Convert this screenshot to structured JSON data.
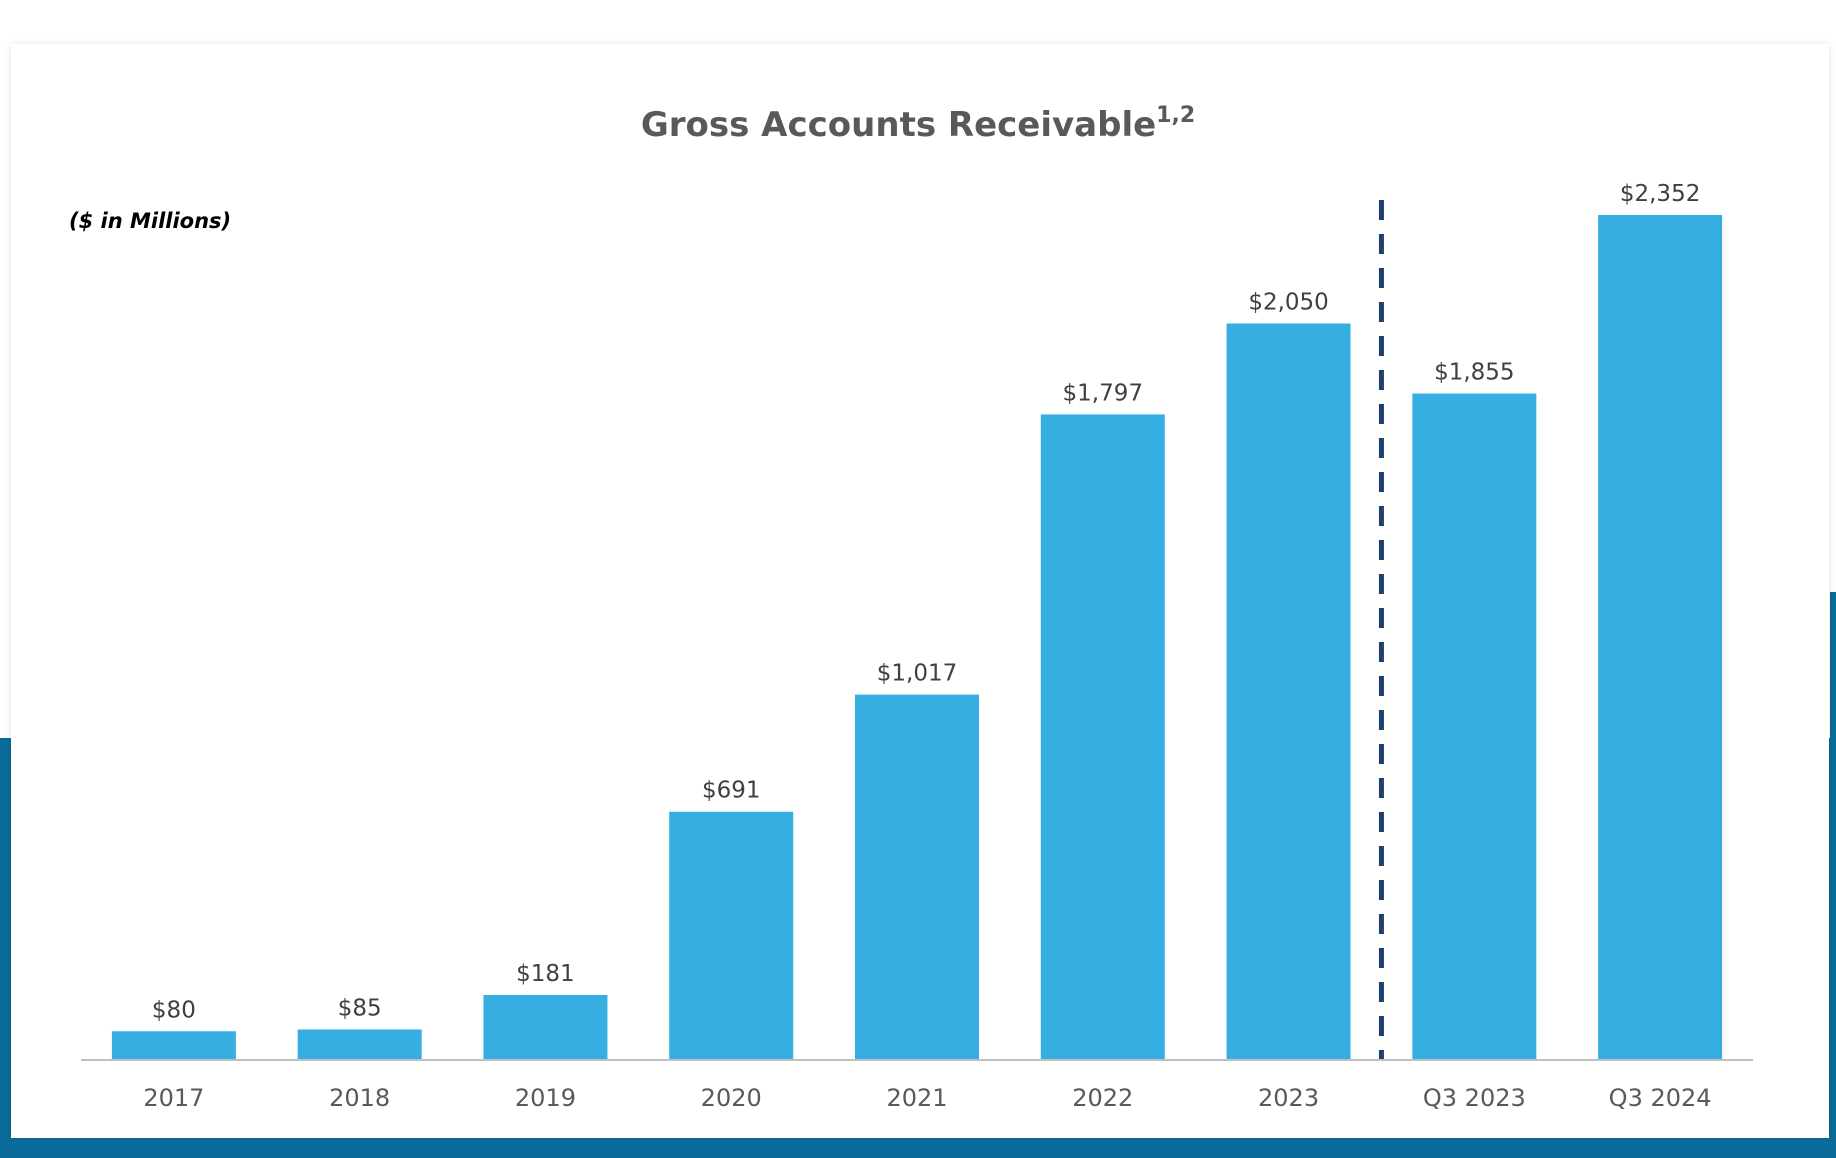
{
  "chart_data": {
    "type": "bar",
    "title": "Gross Accounts Receivable",
    "title_superscript": "1,2",
    "unit_note": "($ in Millions)",
    "categories": [
      "2017",
      "2018",
      "2019",
      "2020",
      "2021",
      "2022",
      "2023",
      "Q3 2023",
      "Q3 2024"
    ],
    "values": [
      80,
      85,
      181,
      691,
      1017,
      1797,
      2050,
      1855,
      2352
    ],
    "value_labels": [
      "$80",
      "$85",
      "$181",
      "$691",
      "$1,017",
      "$1,797",
      "$2,050",
      "$1,855",
      "$2,352"
    ],
    "ylim": [
      0,
      2352
    ],
    "grid": false,
    "separator_after_category": "2023",
    "colors": {
      "bar": "#36aee2",
      "separator": "#1f3f6e",
      "background_band": "#0b6b9a",
      "axis": "#bfbfbf"
    }
  }
}
